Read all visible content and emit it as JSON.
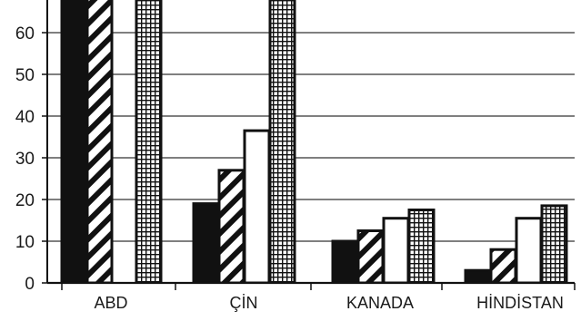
{
  "chart_data": {
    "type": "bar",
    "title": "",
    "xlabel": "",
    "ylabel": "",
    "ylim": [
      0,
      66
    ],
    "yticks": [
      0,
      10,
      20,
      30,
      40,
      50,
      60
    ],
    "grid": "horizontal",
    "categories": [
      "ABD",
      "ÇİN",
      "KANADA",
      "HİNDİSTAN"
    ],
    "series": [
      {
        "pattern": "solid-black",
        "values": [
          70,
          19,
          10,
          3
        ]
      },
      {
        "pattern": "diagonal-stripes",
        "values": [
          70,
          27,
          12.5,
          8
        ]
      },
      {
        "pattern": "white",
        "values": [
          null,
          36.5,
          15.5,
          15.5
        ]
      },
      {
        "pattern": "grid-crosshatch",
        "values": [
          70,
          70,
          17.5,
          18.5
        ]
      }
    ]
  }
}
